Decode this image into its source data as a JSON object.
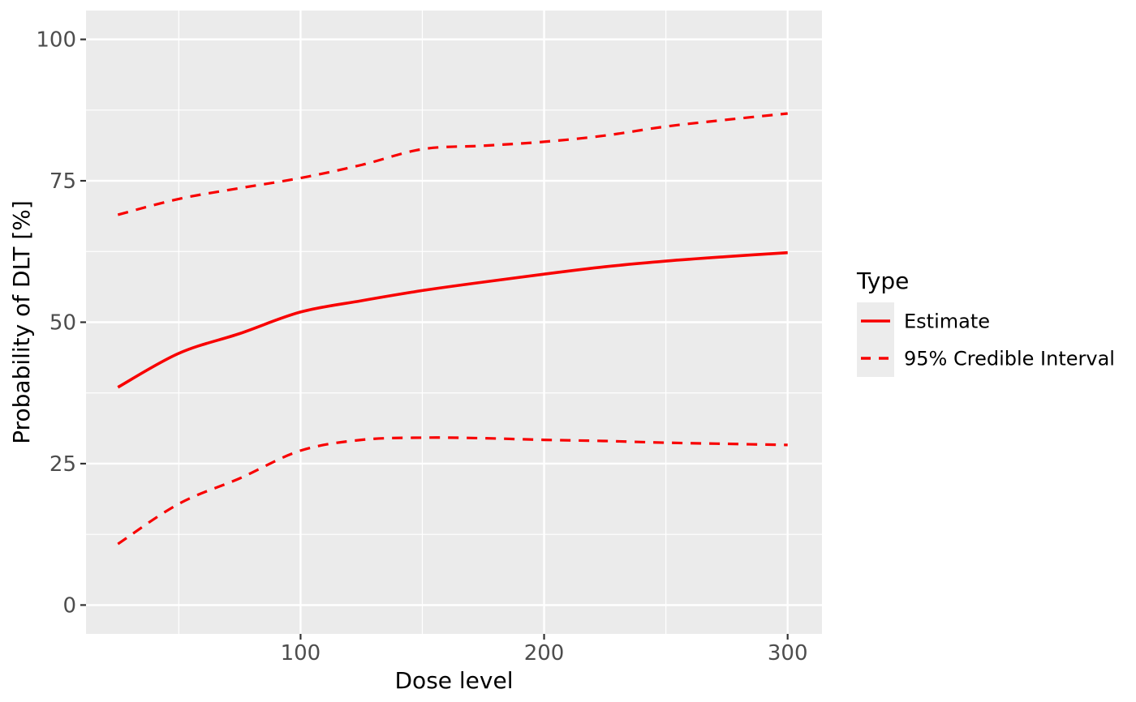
{
  "chart_data": {
    "type": "line",
    "title": "",
    "xlabel": "Dose level",
    "ylabel": "Probability of DLT [%]",
    "x": [
      25,
      50,
      75,
      100,
      125,
      150,
      175,
      200,
      225,
      250,
      275,
      300
    ],
    "series": [
      {
        "name": "Estimate",
        "linetype": "solid",
        "values": [
          38.5,
          44.5,
          48.0,
          51.8,
          53.8,
          55.6,
          57.1,
          58.5,
          59.8,
          60.8,
          61.6,
          62.3
        ]
      },
      {
        "name": "95% Credible Interval (upper)",
        "linetype": "dashed",
        "values": [
          69.0,
          71.8,
          73.7,
          75.5,
          77.8,
          80.6,
          81.2,
          81.9,
          83.0,
          84.6,
          85.8,
          86.9
        ]
      },
      {
        "name": "95% Credible Interval (lower)",
        "linetype": "dashed",
        "values": [
          10.8,
          17.9,
          22.4,
          27.3,
          29.2,
          29.6,
          29.5,
          29.2,
          29.0,
          28.7,
          28.5,
          28.3
        ]
      }
    ],
    "xlim": [
      11.9,
      314.1
    ],
    "ylim": [
      -5.1,
      105.1
    ],
    "x_ticks": [
      100,
      200,
      300
    ],
    "y_ticks": [
      0,
      25,
      50,
      75,
      100
    ],
    "x_minor": [
      50,
      150,
      250
    ],
    "y_minor": [
      12.5,
      37.5,
      62.5,
      87.5
    ],
    "grid": "on",
    "legend": {
      "title": "Type",
      "position": "right",
      "entries": [
        {
          "label": "Estimate",
          "linetype": "solid"
        },
        {
          "label": "95% Credible Interval",
          "linetype": "dashed"
        }
      ]
    },
    "colors": {
      "line": "#F80000",
      "panel_bg": "#EBEBEB",
      "grid": "#FFFFFF",
      "tick_text": "#4D4D4D",
      "axis_title": "#000000",
      "tick_mark": "#333333",
      "legend_key_bg": "#ECECEC",
      "outer_bg": "#FFFFFF"
    }
  }
}
